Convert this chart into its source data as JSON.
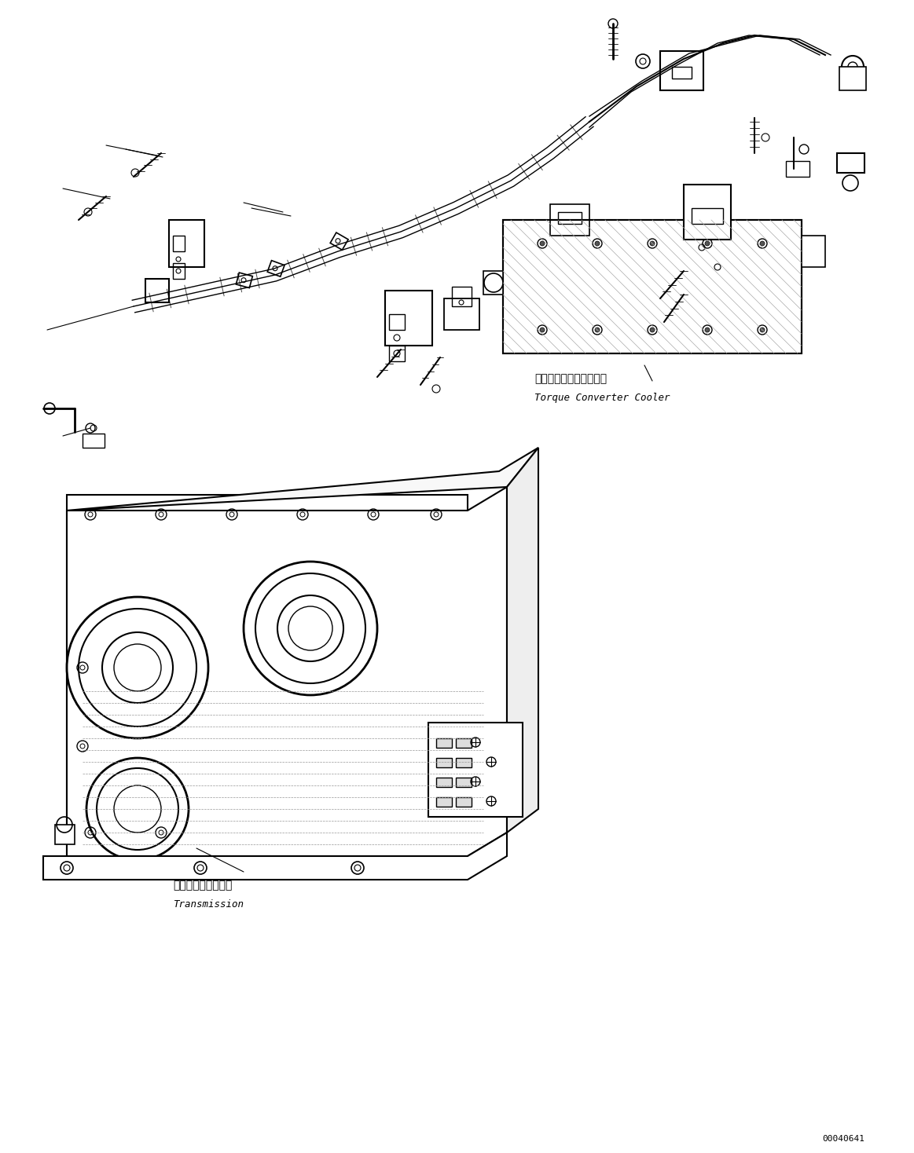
{
  "background_color": "#ffffff",
  "line_color": "#000000",
  "line_width": 1.0,
  "fig_width": 11.63,
  "fig_height": 14.68,
  "dpi": 100,
  "label_torque_converter_jp": "トルクコンバータクーラ",
  "label_torque_converter_en": "Torque Converter Cooler",
  "label_transmission_jp": "トランスミッション",
  "label_transmission_en": "Transmission",
  "part_number": "00040641",
  "font_size_label": 9,
  "font_size_partnumber": 8
}
